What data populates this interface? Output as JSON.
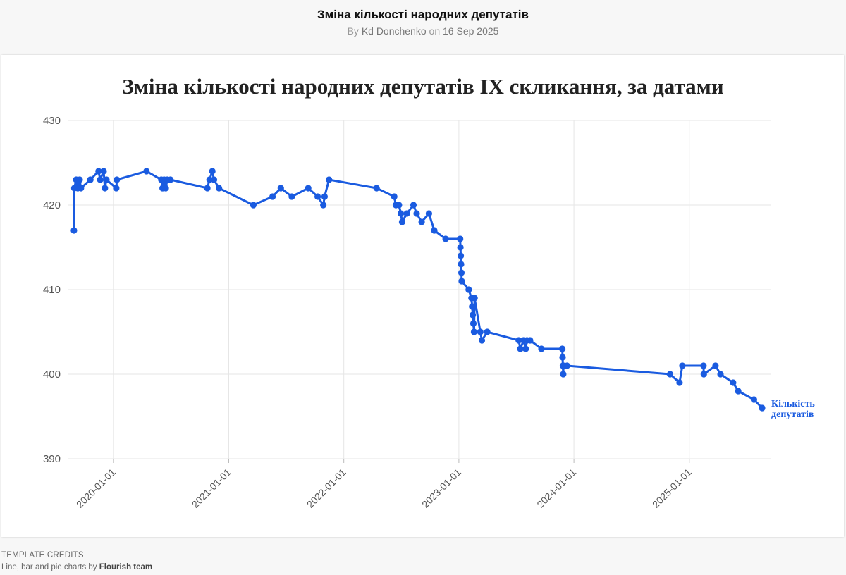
{
  "header": {
    "title": "Зміна кількості народних депутатів",
    "by_prefix": "By",
    "author": "Kd Donchenko",
    "on_prefix": "on",
    "date": "16 Sep 2025"
  },
  "credits": {
    "heading": "TEMPLATE CREDITS",
    "text": "Line, bar and pie charts by",
    "team": "Flourish team"
  },
  "colors": {
    "line": "#1a5be0",
    "grid": "#e6e6e6",
    "text": "#555555"
  },
  "chart_data": {
    "type": "line",
    "title": "Зміна кількості народних депутатів IX скликання, за датами",
    "xlabel": "",
    "ylabel": "",
    "ylim": [
      390,
      430
    ],
    "yticks": [
      390,
      400,
      410,
      420,
      430
    ],
    "xlim": [
      "2019-08-29",
      "2025-09-16"
    ],
    "xticks": [
      "2020-01-01",
      "2021-01-01",
      "2022-01-01",
      "2023-01-01",
      "2024-01-01",
      "2025-01-01"
    ],
    "grid": true,
    "legend": "none",
    "series": [
      {
        "name": "Кількість депутатів",
        "points": [
          [
            "2019-08-29",
            417
          ],
          [
            "2019-08-30",
            422
          ],
          [
            "2019-09-05",
            423
          ],
          [
            "2019-09-10",
            422
          ],
          [
            "2019-09-16",
            423
          ],
          [
            "2019-09-20",
            422
          ],
          [
            "2019-10-20",
            423
          ],
          [
            "2019-11-15",
            424
          ],
          [
            "2019-11-20",
            423
          ],
          [
            "2019-12-01",
            424
          ],
          [
            "2019-12-05",
            422
          ],
          [
            "2019-12-10",
            423
          ],
          [
            "2020-01-10",
            422
          ],
          [
            "2020-01-12",
            423
          ],
          [
            "2020-04-15",
            424
          ],
          [
            "2020-06-01",
            423
          ],
          [
            "2020-06-05",
            422
          ],
          [
            "2020-06-10",
            423
          ],
          [
            "2020-06-15",
            422
          ],
          [
            "2020-06-20",
            423
          ],
          [
            "2020-06-30",
            423
          ],
          [
            "2020-10-25",
            422
          ],
          [
            "2020-11-01",
            423
          ],
          [
            "2020-11-10",
            424
          ],
          [
            "2020-11-15",
            423
          ],
          [
            "2020-12-01",
            422
          ],
          [
            "2021-03-20",
            420
          ],
          [
            "2021-05-20",
            421
          ],
          [
            "2021-06-15",
            422
          ],
          [
            "2021-07-20",
            421
          ],
          [
            "2021-09-10",
            422
          ],
          [
            "2021-10-10",
            421
          ],
          [
            "2021-10-28",
            420
          ],
          [
            "2021-11-01",
            421
          ],
          [
            "2021-11-15",
            423
          ],
          [
            "2022-04-15",
            422
          ],
          [
            "2022-06-10",
            421
          ],
          [
            "2022-06-15",
            420
          ],
          [
            "2022-06-25",
            420
          ],
          [
            "2022-07-01",
            419
          ],
          [
            "2022-07-05",
            418
          ],
          [
            "2022-07-20",
            419
          ],
          [
            "2022-08-10",
            420
          ],
          [
            "2022-08-20",
            419
          ],
          [
            "2022-09-05",
            418
          ],
          [
            "2022-09-28",
            419
          ],
          [
            "2022-10-15",
            417
          ],
          [
            "2022-11-20",
            416
          ],
          [
            "2023-01-05",
            416
          ],
          [
            "2023-01-06",
            415
          ],
          [
            "2023-01-07",
            414
          ],
          [
            "2023-01-08",
            413
          ],
          [
            "2023-01-09",
            412
          ],
          [
            "2023-01-10",
            411
          ],
          [
            "2023-02-01",
            410
          ],
          [
            "2023-02-10",
            409
          ],
          [
            "2023-02-12",
            408
          ],
          [
            "2023-02-14",
            407
          ],
          [
            "2023-02-16",
            406
          ],
          [
            "2023-02-18",
            405
          ],
          [
            "2023-02-20",
            409
          ],
          [
            "2023-03-10",
            405
          ],
          [
            "2023-03-15",
            404
          ],
          [
            "2023-04-01",
            405
          ],
          [
            "2023-07-10",
            404
          ],
          [
            "2023-07-15",
            403
          ],
          [
            "2023-07-25",
            404
          ],
          [
            "2023-08-01",
            403
          ],
          [
            "2023-08-05",
            404
          ],
          [
            "2023-08-15",
            404
          ],
          [
            "2023-09-20",
            403
          ],
          [
            "2023-11-25",
            403
          ],
          [
            "2023-11-26",
            402
          ],
          [
            "2023-11-27",
            401
          ],
          [
            "2023-11-28",
            400
          ],
          [
            "2023-11-29",
            401
          ],
          [
            "2023-12-10",
            401
          ],
          [
            "2024-11-01",
            400
          ],
          [
            "2024-12-01",
            399
          ],
          [
            "2024-12-10",
            401
          ],
          [
            "2025-02-15",
            401
          ],
          [
            "2025-02-16",
            400
          ],
          [
            "2025-03-25",
            401
          ],
          [
            "2025-04-10",
            400
          ],
          [
            "2025-05-20",
            399
          ],
          [
            "2025-06-05",
            398
          ],
          [
            "2025-07-25",
            397
          ],
          [
            "2025-08-20",
            396
          ]
        ]
      }
    ]
  }
}
